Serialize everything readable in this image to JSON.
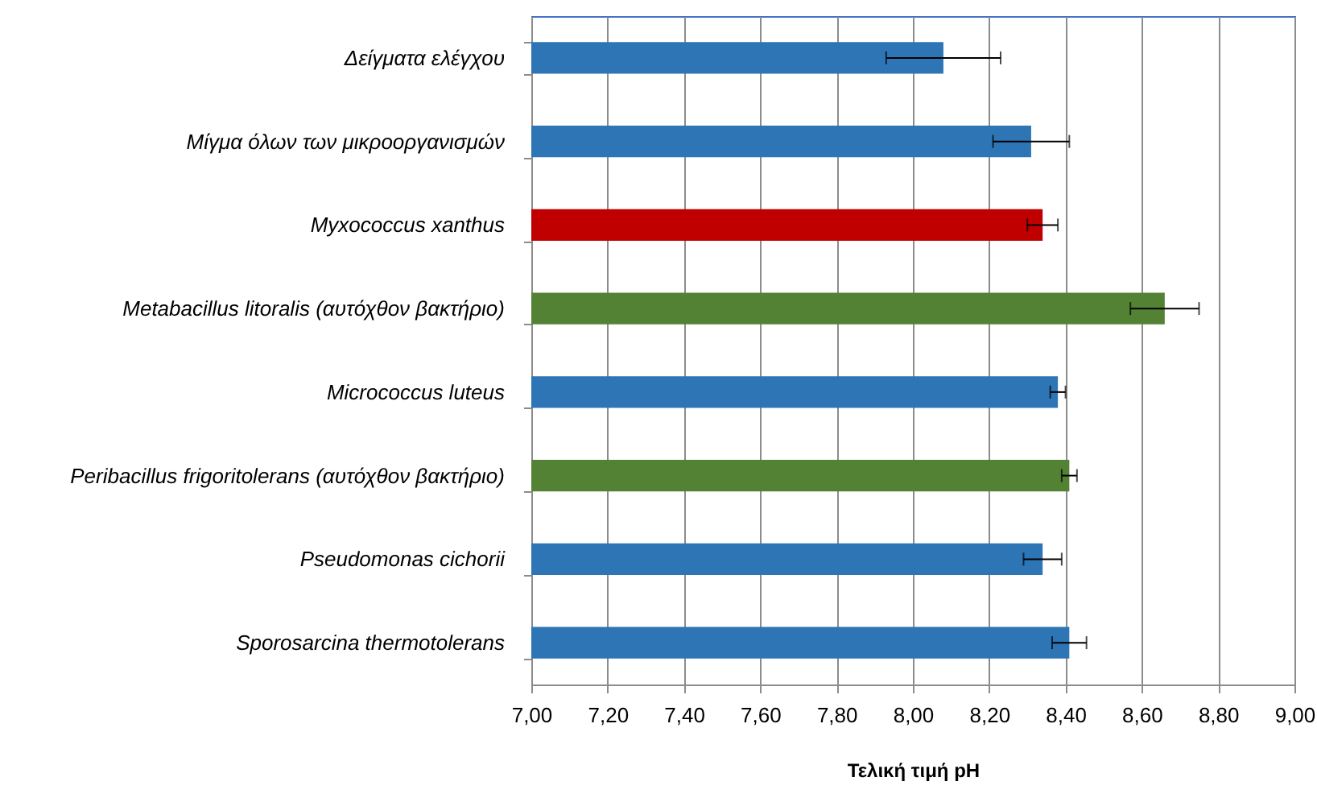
{
  "chart_data": {
    "type": "bar",
    "orientation": "horizontal",
    "xlabel": "Τελική τιμή pH",
    "categories": [
      "Δείγματα ελέγχου",
      "Μίγμα όλων των μικροοργανισμών",
      "Myxococcus xanthus",
      "Metabacillus litoralis (αυτόχθον βακτήριο)",
      "Micrococcus luteus",
      "Peribacillus frigoritolerans (αυτόχθον βακτήριο)",
      "Pseudomonas cichorii",
      "Sporosarcina thermotolerans"
    ],
    "values": [
      8.08,
      8.31,
      8.34,
      8.66,
      8.38,
      8.41,
      8.34,
      8.41
    ],
    "errors": [
      0.15,
      0.1,
      0.04,
      0.09,
      0.02,
      0.02,
      0.05,
      0.045
    ],
    "colors": [
      "#2e75b6",
      "#2e75b6",
      "#c00000",
      "#548235",
      "#2e75b6",
      "#548235",
      "#2e75b6",
      "#2e75b6"
    ],
    "xlim": [
      7.0,
      9.0
    ],
    "xticks": [
      {
        "value": 7.0,
        "label": "7,00"
      },
      {
        "value": 7.2,
        "label": "7,20"
      },
      {
        "value": 7.4,
        "label": "7,40"
      },
      {
        "value": 7.6,
        "label": "7,60"
      },
      {
        "value": 7.8,
        "label": "7,80"
      },
      {
        "value": 8.0,
        "label": "8,00"
      },
      {
        "value": 8.2,
        "label": "8,20"
      },
      {
        "value": 8.4,
        "label": "8,40"
      },
      {
        "value": 8.6,
        "label": "8,60"
      },
      {
        "value": 8.8,
        "label": "8,80"
      },
      {
        "value": 9.0,
        "label": "9,00"
      }
    ],
    "grid": "x"
  }
}
